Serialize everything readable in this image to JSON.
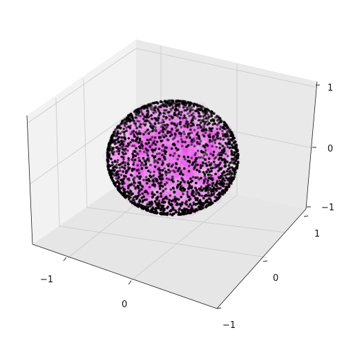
{
  "chart_data": {
    "type": "scatter",
    "projection": "3d",
    "grid": true,
    "title": "",
    "xlabel": "",
    "ylabel": "",
    "zlabel": "",
    "x_axis": {
      "range": [
        -1.3,
        1.3
      ],
      "ticks": [
        -1,
        0
      ],
      "tick_labels": [
        "−1",
        "0"
      ]
    },
    "y_axis": {
      "range": [
        -1.3,
        1.3
      ],
      "ticks": [
        -1,
        0,
        1
      ],
      "tick_labels": [
        "−1",
        "0",
        "1"
      ]
    },
    "z_axis": {
      "range": [
        -1.3,
        1.3
      ],
      "ticks": [
        -1,
        0,
        1
      ],
      "tick_labels": [
        "−1",
        "0",
        "1"
      ]
    },
    "pane_color": "#f2f2f2",
    "series": [
      {
        "kind": "diffuse-halo",
        "color": "#ff00ff",
        "distribution": "unit-sphere-volume",
        "approx_count": 3000
      },
      {
        "kind": "scatter",
        "color": "#000000",
        "distribution": "unit-sphere-surface",
        "approx_count": 2200,
        "sample_points": [
          [
            0.0,
            0.0,
            1.0
          ],
          [
            0.0,
            0.0,
            -1.0
          ],
          [
            1.0,
            0.0,
            0.0
          ],
          [
            -1.0,
            0.0,
            0.0
          ],
          [
            0.0,
            1.0,
            0.0
          ],
          [
            0.0,
            -1.0,
            0.0
          ],
          [
            0.71,
            0.71,
            0.0
          ],
          [
            -0.71,
            0.71,
            0.0
          ],
          [
            0.71,
            -0.71,
            0.0
          ],
          [
            -0.71,
            -0.71,
            0.0
          ],
          [
            0.58,
            0.58,
            0.58
          ],
          [
            -0.58,
            0.58,
            -0.58
          ]
        ]
      }
    ]
  }
}
